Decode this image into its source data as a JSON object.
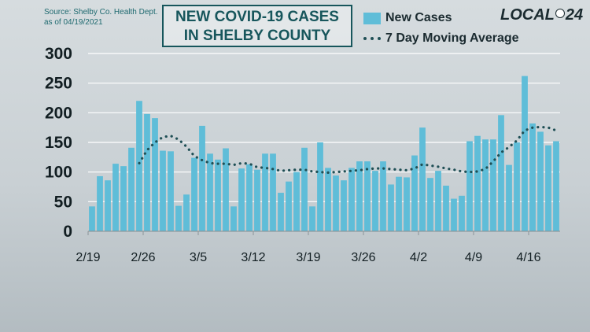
{
  "source": {
    "line1": "Source:  Shelby Co. Health Dept.",
    "line2": "as of 04/19/2021"
  },
  "logo": {
    "text_left": "LOCAL",
    "text_right": "24"
  },
  "colors": {
    "bar": "#5fbdd8",
    "moving_average": "#1f4f55",
    "grid": "#ffffff",
    "title": "#17565c"
  },
  "chart_data": {
    "type": "bar",
    "title_line1": "NEW COVID-19 CASES",
    "title_line2": "IN SHELBY COUNTY",
    "xlabel": "",
    "ylabel": "",
    "ylim": [
      0,
      300
    ],
    "yticks": [
      "0",
      "50",
      "100",
      "150",
      "200",
      "250",
      "300"
    ],
    "grid": true,
    "legend_position": "top-right",
    "x_tick_labels": [
      {
        "label": "2/19",
        "index": 0
      },
      {
        "label": "2/26",
        "index": 7
      },
      {
        "label": "3/5",
        "index": 14
      },
      {
        "label": "3/12",
        "index": 21
      },
      {
        "label": "3/19",
        "index": 28
      },
      {
        "label": "3/26",
        "index": 35
      },
      {
        "label": "4/2",
        "index": 42
      },
      {
        "label": "4/9",
        "index": 49
      },
      {
        "label": "4/16",
        "index": 56
      }
    ],
    "categories": [
      "2/19",
      "2/20",
      "2/21",
      "2/22",
      "2/23",
      "2/24",
      "2/25",
      "2/26",
      "2/27",
      "2/28",
      "3/1",
      "3/2",
      "3/3",
      "3/4",
      "3/5",
      "3/6",
      "3/7",
      "3/8",
      "3/9",
      "3/10",
      "3/11",
      "3/12",
      "3/13",
      "3/14",
      "3/15",
      "3/16",
      "3/17",
      "3/18",
      "3/19",
      "3/20",
      "3/21",
      "3/22",
      "3/23",
      "3/24",
      "3/25",
      "3/26",
      "3/27",
      "3/28",
      "3/29",
      "3/30",
      "3/31",
      "4/1",
      "4/2",
      "4/3",
      "4/4",
      "4/5",
      "4/6",
      "4/7",
      "4/8",
      "4/9",
      "4/10",
      "4/11",
      "4/12",
      "4/13",
      "4/14",
      "4/15",
      "4/16",
      "4/17",
      "4/18",
      "4/19"
    ],
    "series": [
      {
        "name": "New Cases",
        "type": "bar",
        "values": [
          42,
          93,
          86,
          114,
          110,
          141,
          220,
          198,
          191,
          136,
          135,
          43,
          62,
          124,
          178,
          131,
          121,
          140,
          42,
          106,
          113,
          104,
          131,
          131,
          65,
          84,
          100,
          141,
          42,
          150,
          107,
          94,
          86,
          107,
          118,
          118,
          102,
          118,
          79,
          92,
          91,
          128,
          175,
          90,
          102,
          77,
          55,
          60,
          152,
          161,
          155,
          155,
          196,
          112,
          150,
          262,
          182,
          168,
          145,
          152
        ]
      },
      {
        "name": "7 Day Moving Average",
        "type": "line",
        "values": [
          null,
          null,
          null,
          null,
          null,
          null,
          115,
          137,
          150,
          159,
          161,
          155,
          143,
          127,
          120,
          115,
          114,
          114,
          112,
          115,
          114,
          108,
          107,
          105,
          102,
          103,
          104,
          104,
          101,
          100,
          99,
          100,
          101,
          102,
          103,
          105,
          106,
          106,
          105,
          104,
          103,
          106,
          113,
          111,
          109,
          106,
          104,
          101,
          100,
          101,
          105,
          118,
          133,
          142,
          153,
          170,
          175,
          176,
          175,
          170
        ]
      }
    ]
  }
}
